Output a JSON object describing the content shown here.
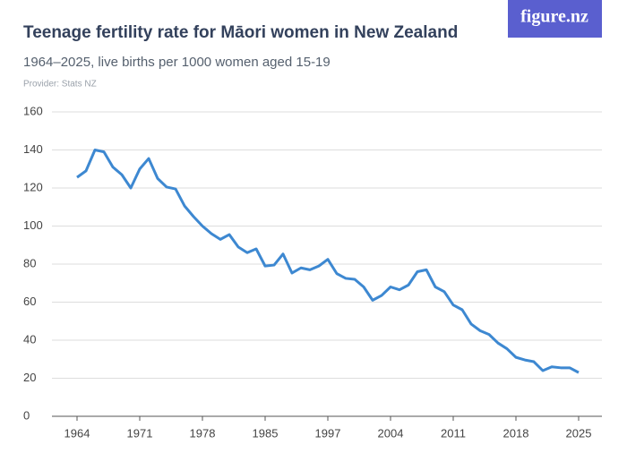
{
  "chart_data": {
    "type": "line",
    "title": "Teenage fertility rate for Māori women in New Zealand",
    "subtitle": "1964–2025, live births per 1000 women aged 15-19",
    "provider": "Provider: Stats NZ",
    "logo": "figure.nz",
    "categories": [
      "1964",
      null,
      null,
      null,
      null,
      null,
      null,
      "1971",
      null,
      null,
      null,
      null,
      null,
      null,
      "1978",
      null,
      null,
      null,
      null,
      null,
      null,
      "1985",
      null,
      null,
      null,
      null,
      null,
      null,
      "1997",
      null,
      null,
      null,
      null,
      null,
      null,
      "2004",
      null,
      null,
      null,
      null,
      null,
      null,
      "2011",
      null,
      null,
      null,
      null,
      null,
      null,
      "2018",
      null,
      null,
      null,
      null,
      null,
      null,
      "2025"
    ],
    "series": [
      {
        "name": "Teenage fertility rate",
        "color": "#3d88d1",
        "values": [
          125.6,
          129,
          140,
          139,
          131,
          127,
          120,
          130,
          135.5,
          125,
          120.5,
          119.5,
          110.6,
          105,
          100,
          96,
          93,
          95.5,
          89,
          86,
          88,
          79,
          79.5,
          85.3,
          75.3,
          78,
          77,
          79,
          82.5,
          75,
          72.5,
          72,
          68,
          61,
          63.5,
          68,
          66.5,
          69,
          76,
          77,
          68,
          65.5,
          58.5,
          56,
          48.5,
          45,
          43,
          38.5,
          35.5,
          31,
          29.6,
          28.7,
          24,
          26,
          25.5,
          25.5,
          23
        ]
      }
    ],
    "ylim": [
      0,
      160
    ],
    "yticks": [
      0,
      20,
      40,
      60,
      80,
      100,
      120,
      140,
      160
    ],
    "grid": true
  }
}
